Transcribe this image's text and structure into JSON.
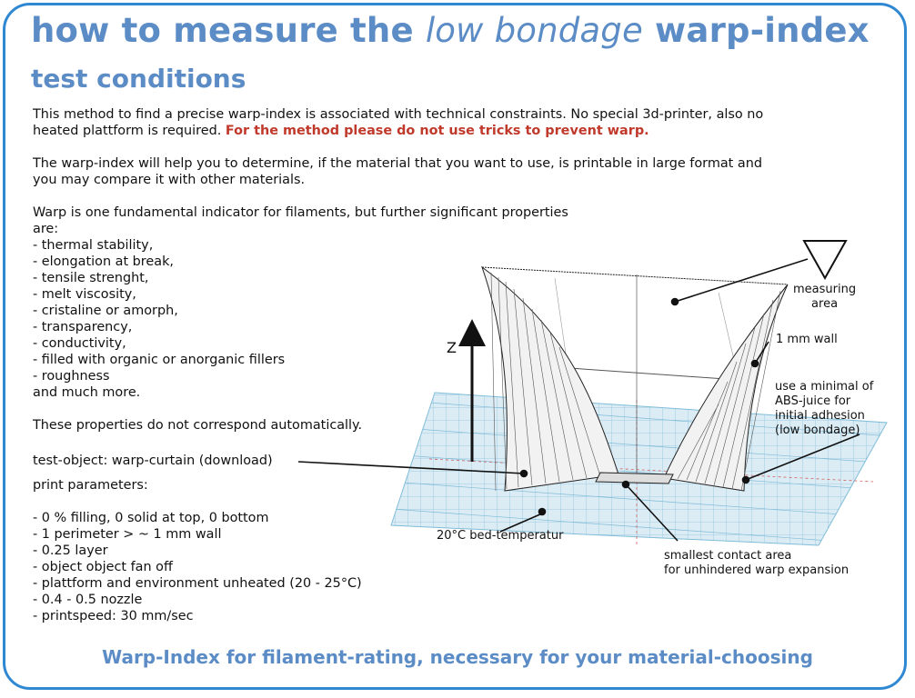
{
  "title": {
    "part1": "how to measure the ",
    "part2": "low bondage",
    "part3": " warp-index"
  },
  "subtitle": "test conditions",
  "para1": {
    "line1": "This method to find a precise warp-index is associated with technical constraints. No special 3d-printer, also no",
    "line2_start": "heated plattform is required. ",
    "line2_red": "For the method please do not use tricks to prevent warp."
  },
  "para2": {
    "line1": "The warp-index will help you to determine, if the material that you want to use, is printable in large format and",
    "line2": "you may compare it with other materials."
  },
  "para3": {
    "line1": "Warp is one fundamental indicator for filaments, but further significant properties",
    "line2": "are:",
    "items": [
      "- thermal stability,",
      "- elongation at break,",
      "- tensile strenght,",
      "- melt viscosity,",
      "- cristaline or amorph,",
      "- transparency,",
      "- conductivity,",
      "- filled with organic or anorganic fillers",
      "- roughness"
    ],
    "end": "and much more."
  },
  "para4": "These properties do not correspond automatically.",
  "test_object": "test-object: warp-curtain (download)",
  "print_params": {
    "heading": "print parameters:",
    "items": [
      "- 0 % filling, 0 solid at top, 0 bottom",
      "- 1 perimeter > ~ 1 mm wall",
      "- 0.25 layer",
      "- object object fan off",
      "- plattform and environment unheated (20 - 25°C)",
      "- 0.4 - 0.5 nozzle",
      "- printspeed: 30 mm/sec"
    ]
  },
  "annotations": {
    "measuring_area": [
      "measuring",
      "area"
    ],
    "wall": "1 mm wall",
    "abs_juice": [
      "use a minimal of",
      "ABS-juice for",
      "initial adhesion",
      "(low bondage)"
    ],
    "z_axis": "Z",
    "bed_temp": "20°C bed-temperatur",
    "contact_area": [
      "smallest contact area",
      "for unhindered warp expansion"
    ]
  },
  "footer": "Warp-Index for filament-rating, necessary for your material-choosing",
  "colors": {
    "accent": "#5b8cc6",
    "border": "#2f88d2",
    "warn": "#c0392b",
    "grid": "#7fbcd8"
  }
}
